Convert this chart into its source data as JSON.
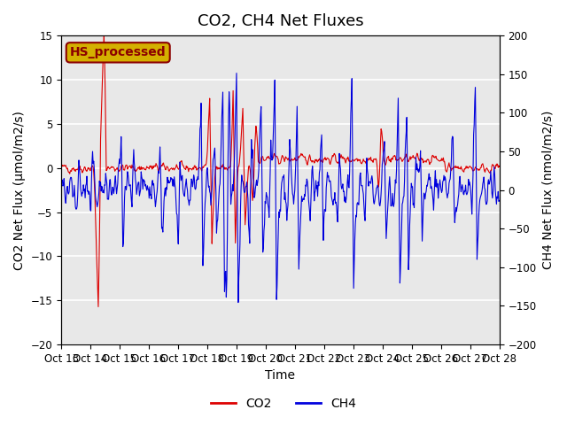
{
  "title": "CO2, CH4 Net Fluxes",
  "xlabel": "Time",
  "ylabel_left": "CO2 Net Flux (μmol/m2/s)",
  "ylabel_right": "CH4 Net Flux (nmol/m2/s)",
  "ylim_left": [
    -20,
    15
  ],
  "ylim_right": [
    -200,
    200
  ],
  "yticks_left": [
    -20,
    -15,
    -10,
    -5,
    0,
    5,
    10,
    15
  ],
  "yticks_right": [
    -200,
    -150,
    -100,
    -50,
    0,
    50,
    100,
    150,
    200
  ],
  "xtick_labels": [
    "Oct 13",
    "Oct 14",
    "Oct 15",
    "Oct 16",
    "Oct 17",
    "Oct 18",
    "Oct 19",
    "Oct 20",
    "Oct 21",
    "Oct 22",
    "Oct 23",
    "Oct 24",
    "Oct 25",
    "Oct 26",
    "Oct 27",
    "Oct 28"
  ],
  "annotation_text": "HS_processed",
  "annotation_bg": "#d4b000",
  "annotation_border": "#8b0000",
  "color_co2": "#dd0000",
  "color_ch4": "#0000dd",
  "legend_co2": "CO2",
  "legend_ch4": "CH4",
  "background_color": "#e8e8e8",
  "grid_color": "#ffffff",
  "title_fontsize": 13,
  "label_fontsize": 10,
  "tick_fontsize": 8.5,
  "seed": 42
}
